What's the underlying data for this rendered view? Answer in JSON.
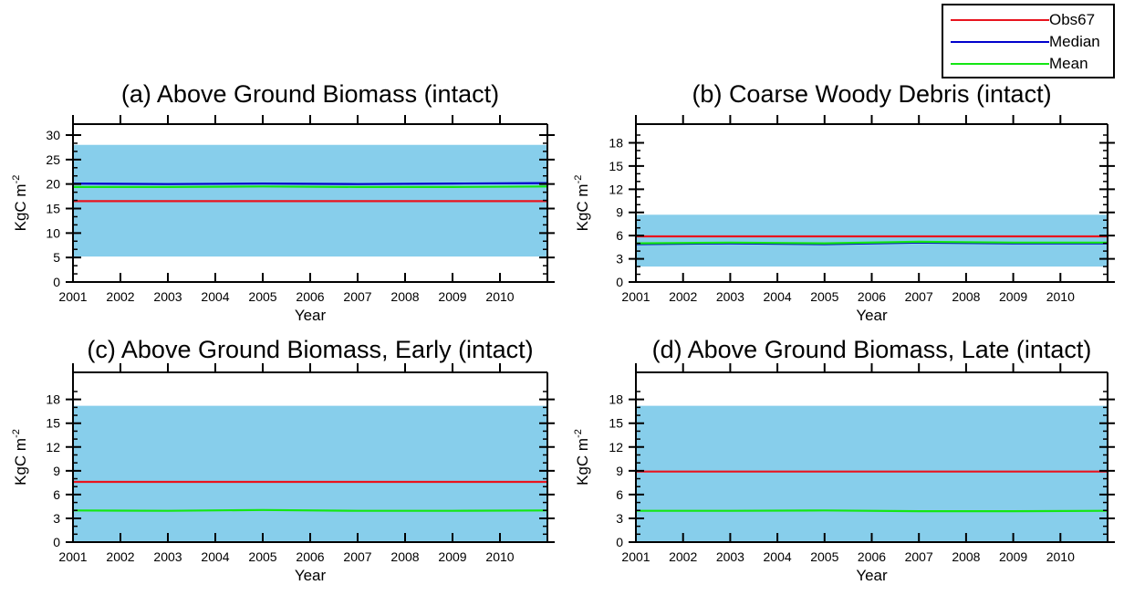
{
  "colors": {
    "band": "#87CEEB",
    "obs": "#e8141e",
    "median": "#0000cc",
    "mean": "#14e614",
    "axis": "#000000"
  },
  "legend": {
    "placement": "top-right",
    "items": [
      {
        "key": "obs",
        "label": "Obs67"
      },
      {
        "key": "median",
        "label": "Median"
      },
      {
        "key": "mean",
        "label": "Mean"
      }
    ]
  },
  "chart_data": [
    {
      "type": "line",
      "title": "(a) Above Ground Biomass (intact)",
      "xlabel": "Year",
      "ylabel": "KgC m",
      "ylabel_sup": "-2",
      "xlim": [
        2001,
        2011
      ],
      "ylim": [
        0,
        30
      ],
      "yticks": [
        0,
        5,
        10,
        15,
        20,
        25,
        30
      ],
      "xticks": [
        2001,
        2002,
        2003,
        2004,
        2005,
        2006,
        2007,
        2008,
        2009,
        2010
      ],
      "band": {
        "lower": 5.2,
        "upper": 28.0
      },
      "series": [
        {
          "name": "Obs67",
          "color_key": "obs",
          "x": [
            2001,
            2011
          ],
          "y": [
            16.5,
            16.5
          ]
        },
        {
          "name": "Median",
          "color_key": "median",
          "x": [
            2001,
            2003,
            2005,
            2007,
            2009,
            2011
          ],
          "y": [
            20.1,
            20.0,
            20.1,
            20.0,
            20.1,
            20.2
          ]
        },
        {
          "name": "Mean",
          "color_key": "mean",
          "x": [
            2001,
            2003,
            2005,
            2007,
            2009,
            2011
          ],
          "y": [
            19.4,
            19.4,
            19.5,
            19.4,
            19.4,
            19.5
          ]
        }
      ]
    },
    {
      "type": "line",
      "title": "(b) Coarse Woody Debris (intact)",
      "xlabel": "Year",
      "ylabel": "KgC m",
      "ylabel_sup": "-2",
      "xlim": [
        2001,
        2011
      ],
      "ylim": [
        0,
        19
      ],
      "yticks": [
        0,
        3,
        6,
        9,
        12,
        15,
        18
      ],
      "xticks": [
        2001,
        2002,
        2003,
        2004,
        2005,
        2006,
        2007,
        2008,
        2009,
        2010
      ],
      "band": {
        "lower": 2.0,
        "upper": 8.7
      },
      "series": [
        {
          "name": "Obs67",
          "color_key": "obs",
          "x": [
            2001,
            2011
          ],
          "y": [
            5.9,
            5.9
          ]
        },
        {
          "name": "Median",
          "color_key": "median",
          "x": [
            2001,
            2003,
            2005,
            2007,
            2009,
            2011
          ],
          "y": [
            4.9,
            5.0,
            4.9,
            5.1,
            5.0,
            5.0
          ]
        },
        {
          "name": "Mean",
          "color_key": "mean",
          "x": [
            2001,
            2003,
            2005,
            2007,
            2009,
            2011
          ],
          "y": [
            5.0,
            5.1,
            5.0,
            5.2,
            5.1,
            5.1
          ]
        }
      ]
    },
    {
      "type": "line",
      "title": "(c) Above Ground Biomass, Early (intact)",
      "xlabel": "Year",
      "ylabel": "KgC m",
      "ylabel_sup": "-2",
      "xlim": [
        2001,
        2011
      ],
      "ylim": [
        0,
        19
      ],
      "yticks": [
        0,
        3,
        6,
        9,
        12,
        15,
        18
      ],
      "xticks": [
        2001,
        2002,
        2003,
        2004,
        2005,
        2006,
        2007,
        2008,
        2009,
        2010
      ],
      "band": {
        "lower": 0,
        "upper": 17.2
      },
      "series": [
        {
          "name": "Obs67",
          "color_key": "obs",
          "x": [
            2001,
            2011
          ],
          "y": [
            7.6,
            7.6
          ]
        },
        {
          "name": "Mean",
          "color_key": "mean",
          "x": [
            2001,
            2003,
            2005,
            2007,
            2009,
            2011
          ],
          "y": [
            4.0,
            3.95,
            4.05,
            3.95,
            3.95,
            4.0
          ]
        }
      ]
    },
    {
      "type": "line",
      "title": "(d) Above Ground Biomass, Late (intact)",
      "xlabel": "Year",
      "ylabel": "KgC m",
      "ylabel_sup": "-2",
      "xlim": [
        2001,
        2011
      ],
      "ylim": [
        0,
        19
      ],
      "yticks": [
        0,
        3,
        6,
        9,
        12,
        15,
        18
      ],
      "xticks": [
        2001,
        2002,
        2003,
        2004,
        2005,
        2006,
        2007,
        2008,
        2009,
        2010
      ],
      "band": {
        "lower": 0,
        "upper": 17.2
      },
      "series": [
        {
          "name": "Obs67",
          "color_key": "obs",
          "x": [
            2001,
            2011
          ],
          "y": [
            8.9,
            8.9
          ]
        },
        {
          "name": "Mean",
          "color_key": "mean",
          "x": [
            2001,
            2003,
            2005,
            2007,
            2009,
            2011
          ],
          "y": [
            3.95,
            3.95,
            4.0,
            3.9,
            3.9,
            3.95
          ]
        }
      ]
    }
  ]
}
